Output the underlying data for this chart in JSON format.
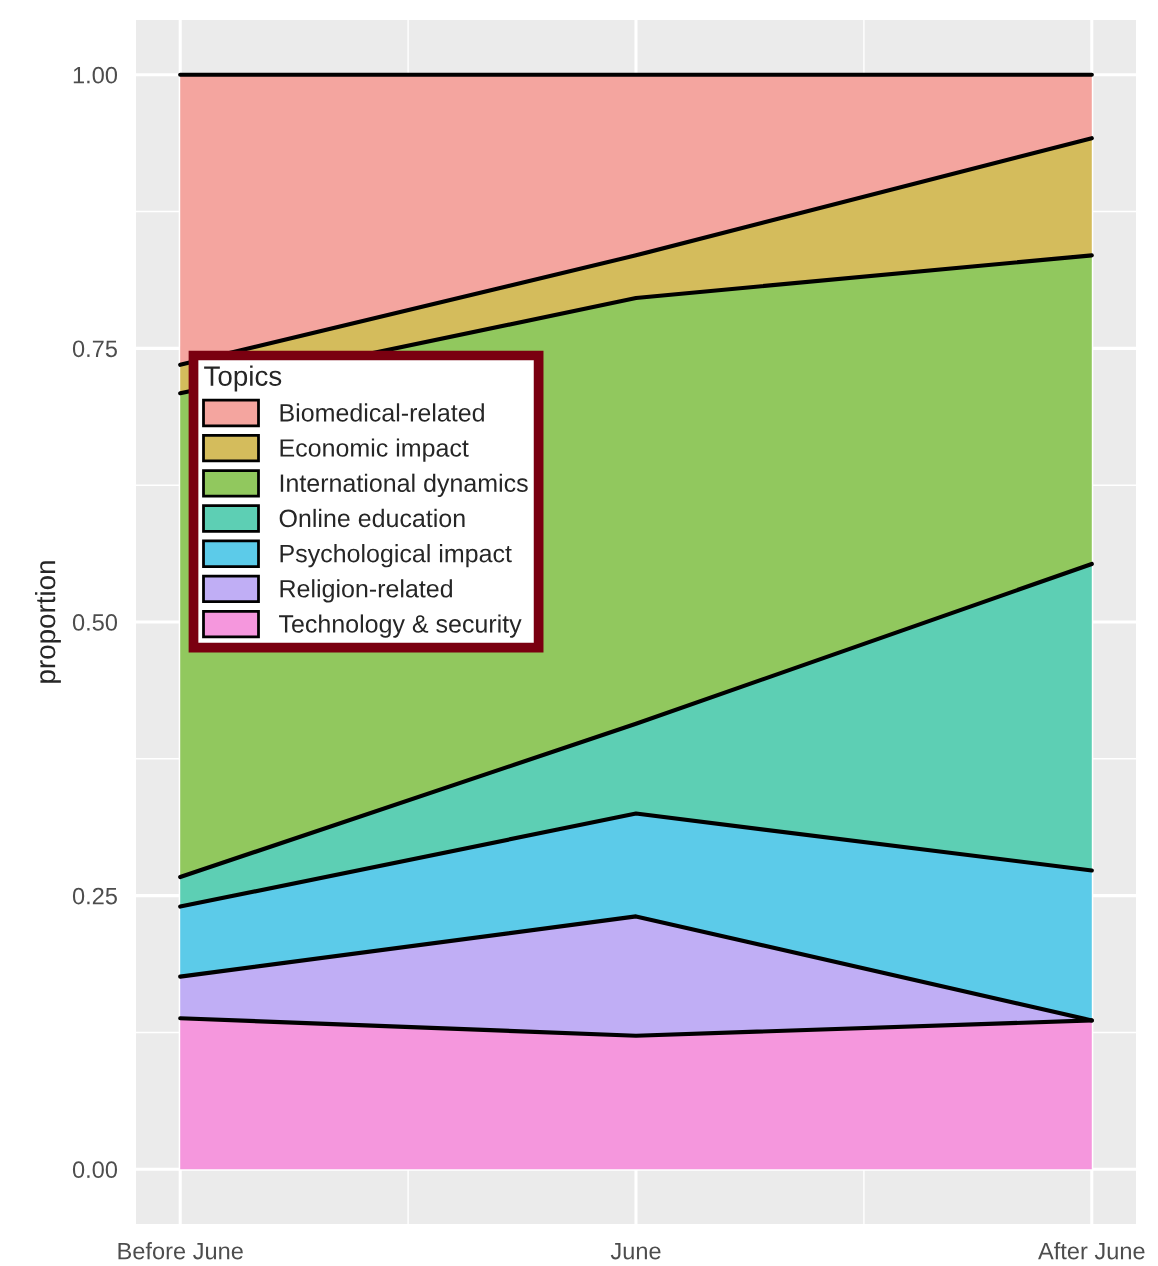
{
  "chart_data": {
    "type": "area",
    "stacked": true,
    "ylabel": "proportion",
    "legend_title": "Topics",
    "legend": "left",
    "grid": true,
    "categories": [
      "Before June",
      "June",
      "After June"
    ],
    "ylim": [
      -0.05,
      1.05
    ],
    "yticks": [
      {
        "value": 0,
        "label": "0.00"
      },
      {
        "value": 0.25,
        "label": "0.25"
      },
      {
        "value": 0.5,
        "label": "0.50"
      },
      {
        "value": 0.75,
        "label": "0.75"
      },
      {
        "value": 1,
        "label": "1.00"
      }
    ],
    "series": [
      {
        "name": "Technology & security",
        "color": "#f597dd",
        "values": [
          0.138,
          0.122,
          0.136
        ]
      },
      {
        "name": "Religion-related",
        "color": "#c0aef5",
        "values": [
          0.038,
          0.109,
          0
        ]
      },
      {
        "name": "Psychological impact",
        "color": "#5ccbe9",
        "values": [
          0.064,
          0.094,
          0.137
        ]
      },
      {
        "name": "Online education",
        "color": "#5dcfb4",
        "values": [
          0.027,
          0.082,
          0.28
        ]
      },
      {
        "name": "International dynamics",
        "color": "#91c85e",
        "values": [
          0.442,
          0.389,
          0.282
        ]
      },
      {
        "name": "Economic impact",
        "color": "#d4bc5c",
        "values": [
          0.026,
          0.039,
          0.107
        ]
      },
      {
        "name": "Biomedical-related",
        "color": "#f4a59f",
        "values": [
          0.265,
          0.165,
          0.058
        ]
      }
    ]
  }
}
